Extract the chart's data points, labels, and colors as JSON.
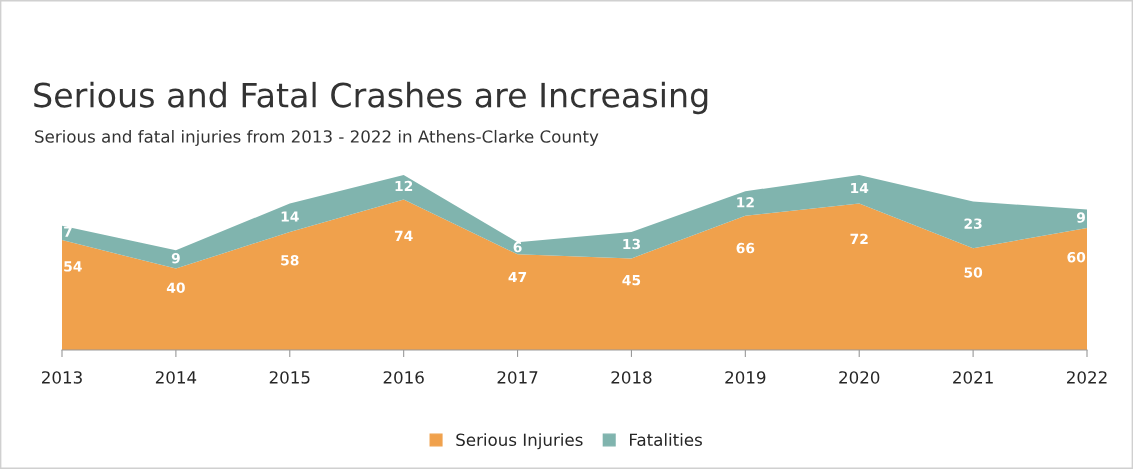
{
  "chart_data": {
    "type": "area",
    "title": "Serious and Fatal Crashes are Increasing",
    "subtitle": "Serious and fatal injuries from 2013 - 2022 in Athens-Clarke County",
    "categories": [
      "2013",
      "2014",
      "2015",
      "2016",
      "2017",
      "2018",
      "2019",
      "2020",
      "2021",
      "2022"
    ],
    "stacked": true,
    "data_labels": true,
    "legend": "bottom",
    "grid": false,
    "series": [
      {
        "name": "Serious Injuries",
        "color": "#f0a14c",
        "values": [
          54,
          40,
          58,
          74,
          47,
          45,
          66,
          72,
          50,
          60
        ]
      },
      {
        "name": "Fatalities",
        "color": "#80b4ae",
        "values": [
          7,
          9,
          14,
          12,
          6,
          13,
          12,
          14,
          23,
          9
        ]
      }
    ]
  }
}
